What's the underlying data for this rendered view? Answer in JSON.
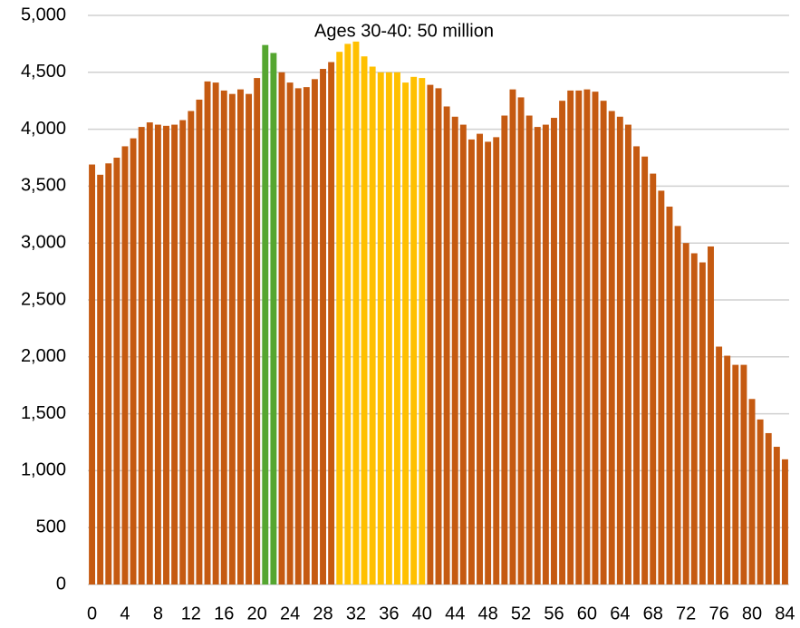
{
  "chart_data": {
    "type": "bar",
    "annotation": "Ages 30-40: 50 million",
    "categories": [
      "0",
      null,
      null,
      null,
      "4",
      null,
      null,
      null,
      "8",
      null,
      null,
      null,
      "12",
      null,
      null,
      null,
      "16",
      null,
      null,
      null,
      "20",
      null,
      null,
      null,
      "24",
      null,
      null,
      null,
      "28",
      null,
      null,
      null,
      "32",
      null,
      null,
      null,
      "36",
      null,
      null,
      null,
      "40",
      null,
      null,
      null,
      "44",
      null,
      null,
      null,
      "48",
      null,
      null,
      null,
      "52",
      null,
      null,
      null,
      "56",
      null,
      null,
      null,
      "60",
      null,
      null,
      null,
      "64",
      null,
      null,
      null,
      "68",
      null,
      null,
      null,
      "72",
      null,
      null,
      null,
      "76",
      null,
      null,
      null,
      "80",
      null,
      null,
      null,
      "84"
    ],
    "values": [
      3690,
      3600,
      3700,
      3750,
      3850,
      3920,
      4020,
      4060,
      4040,
      4030,
      4040,
      4080,
      4160,
      4260,
      4420,
      4410,
      4340,
      4310,
      4350,
      4310,
      4450,
      4740,
      4670,
      4500,
      4410,
      4360,
      4370,
      4440,
      4530,
      4590,
      4680,
      4750,
      4770,
      4640,
      4550,
      4500,
      4500,
      4500,
      4410,
      4460,
      4450,
      4390,
      4360,
      4200,
      4110,
      4040,
      3910,
      3960,
      3890,
      3930,
      4120,
      4350,
      4280,
      4120,
      4020,
      4040,
      4100,
      4250,
      4340,
      4340,
      4350,
      4330,
      4250,
      4160,
      4110,
      4040,
      3850,
      3760,
      3610,
      3460,
      3320,
      3150,
      3000,
      2910,
      2830,
      2970,
      2090,
      2010,
      1930,
      1930,
      1630,
      1450,
      1330,
      1210,
      1100
    ],
    "colors": [
      "#c55a11",
      "#c55a11",
      "#c55a11",
      "#c55a11",
      "#c55a11",
      "#c55a11",
      "#c55a11",
      "#c55a11",
      "#c55a11",
      "#c55a11",
      "#c55a11",
      "#c55a11",
      "#c55a11",
      "#c55a11",
      "#c55a11",
      "#c55a11",
      "#c55a11",
      "#c55a11",
      "#c55a11",
      "#c55a11",
      "#c55a11",
      "#55a630",
      "#55a630",
      "#c55a11",
      "#c55a11",
      "#c55a11",
      "#c55a11",
      "#c55a11",
      "#c55a11",
      "#c55a11",
      "#ffc000",
      "#ffc000",
      "#ffc000",
      "#ffc000",
      "#ffc000",
      "#ffc000",
      "#ffc000",
      "#ffc000",
      "#ffc000",
      "#ffc000",
      "#ffc000",
      "#c55a11",
      "#c55a11",
      "#c55a11",
      "#c55a11",
      "#c55a11",
      "#c55a11",
      "#c55a11",
      "#c55a11",
      "#c55a11",
      "#c55a11",
      "#c55a11",
      "#c55a11",
      "#c55a11",
      "#c55a11",
      "#c55a11",
      "#c55a11",
      "#c55a11",
      "#c55a11",
      "#c55a11",
      "#c55a11",
      "#c55a11",
      "#c55a11",
      "#c55a11",
      "#c55a11",
      "#c55a11",
      "#c55a11",
      "#c55a11",
      "#c55a11",
      "#c55a11",
      "#c55a11",
      "#c55a11",
      "#c55a11",
      "#c55a11",
      "#c55a11",
      "#c55a11",
      "#c55a11",
      "#c55a11",
      "#c55a11",
      "#c55a11",
      "#c55a11",
      "#c55a11",
      "#c55a11",
      "#c55a11",
      "#c55a11"
    ],
    "ylim": [
      0,
      5000
    ],
    "yticks": [
      0,
      500,
      {
        "value": 1000,
        "label": "1,000"
      },
      {
        "value": 1500,
        "label": "1,500"
      },
      {
        "value": 2000,
        "label": "2,000"
      },
      {
        "value": 2500,
        "label": "2,500"
      },
      {
        "value": 3000,
        "label": "3,000"
      },
      {
        "value": 3500,
        "label": "3,500"
      },
      {
        "value": 4000,
        "label": "4,000"
      },
      {
        "value": 4500,
        "label": "4,500"
      },
      {
        "value": 5000,
        "label": "5,000"
      }
    ],
    "grid": true
  }
}
